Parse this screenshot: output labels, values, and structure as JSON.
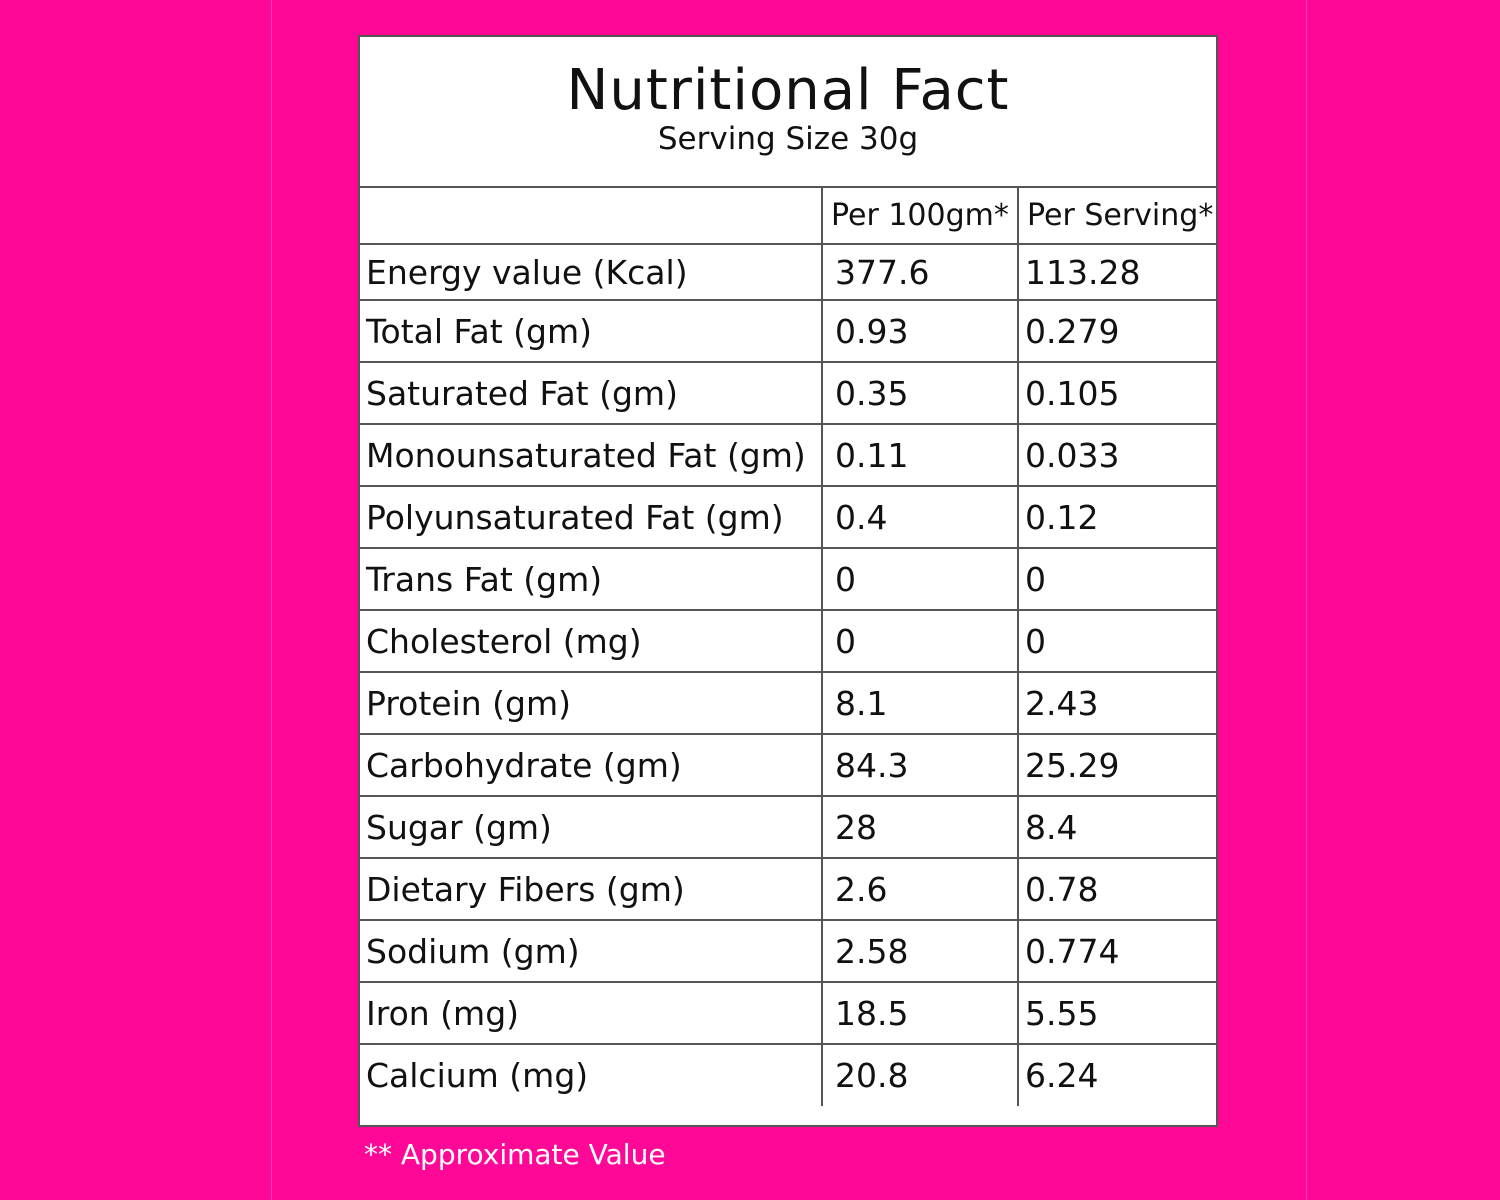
{
  "label": {
    "title": "Nutritional Fact",
    "subtitle": "Serving Size 30g"
  },
  "table": {
    "headers": [
      "",
      "Per 100gm*",
      "Per Serving*"
    ],
    "rows": [
      {
        "nutrient": "Energy value  (Kcal)",
        "per100": "377.6",
        "perServing": "113.28"
      },
      {
        "nutrient": "Total Fat (gm)",
        "per100": "0.93",
        "perServing": "0.279"
      },
      {
        "nutrient": "Saturated Fat (gm)",
        "per100": "0.35",
        "perServing": "0.105"
      },
      {
        "nutrient": "Monounsaturated Fat (gm)",
        "per100": "0.11",
        "perServing": "0.033"
      },
      {
        "nutrient": "Polyunsaturated Fat (gm)",
        "per100": "0.4",
        "perServing": "0.12"
      },
      {
        "nutrient": "Trans Fat (gm)",
        "per100": "0",
        "perServing": "0"
      },
      {
        "nutrient": "Cholesterol (mg)",
        "per100": "0",
        "perServing": "0"
      },
      {
        "nutrient": "Protein (gm)",
        "per100": "8.1",
        "perServing": "2.43"
      },
      {
        "nutrient": "Carbohydrate (gm)",
        "per100": "84.3",
        "perServing": "25.29"
      },
      {
        "nutrient": "Sugar (gm)",
        "per100": "28",
        "perServing": "8.4"
      },
      {
        "nutrient": "Dietary Fibers (gm)",
        "per100": "2.6",
        "perServing": "0.78"
      },
      {
        "nutrient": "Sodium (gm)",
        "per100": "2.58",
        "perServing": "0.774"
      },
      {
        "nutrient": "Iron (mg)",
        "per100": "18.5",
        "perServing": "5.55"
      },
      {
        "nutrient": "Calcium (mg)",
        "per100": "20.8",
        "perServing": "6.24"
      }
    ]
  },
  "footnote": "** Approximate Value",
  "colors": {
    "background": "#ff0898",
    "card": "#ffffff",
    "border": "#555555",
    "text": "#111111",
    "footnote": "#ffffff"
  }
}
